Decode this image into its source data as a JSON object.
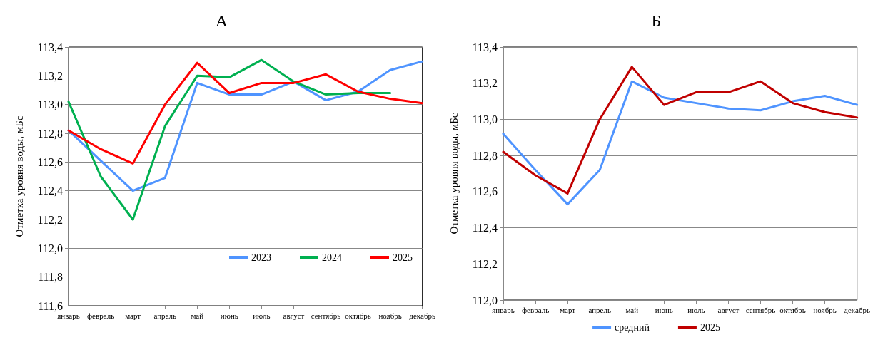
{
  "chart_data": [
    {
      "type": "line",
      "title": "А",
      "ylabel": "Отметка уровня воды, мБс",
      "categories": [
        "январь",
        "февраль",
        "март",
        "апрель",
        "май",
        "июнь",
        "июль",
        "август",
        "сентябрь",
        "октябрь",
        "ноябрь",
        "декабрь"
      ],
      "series": [
        {
          "name": "2023",
          "color": "#4f94ff",
          "values": [
            112.82,
            112.61,
            112.4,
            112.49,
            113.15,
            113.07,
            113.07,
            113.16,
            113.03,
            113.09,
            113.24,
            113.3
          ]
        },
        {
          "name": "2024",
          "color": "#00b050",
          "values": [
            113.02,
            112.5,
            112.2,
            112.85,
            113.2,
            113.19,
            113.31,
            113.16,
            113.07,
            113.08,
            113.08,
            null
          ]
        },
        {
          "name": "2025",
          "color": "#ff0000",
          "values": [
            112.82,
            112.69,
            112.59,
            113.0,
            113.29,
            113.08,
            113.15,
            113.15,
            113.21,
            113.09,
            113.04,
            113.01
          ]
        }
      ],
      "ylim": [
        111.6,
        113.4
      ],
      "yticks": [
        {
          "value": 111.6,
          "label": "111,6"
        },
        {
          "value": 111.8,
          "label": "111,8"
        },
        {
          "value": 112.0,
          "label": "112,0"
        },
        {
          "value": 112.2,
          "label": "112,2"
        },
        {
          "value": 112.4,
          "label": "112,4"
        },
        {
          "value": 112.6,
          "label": "112,6"
        },
        {
          "value": 112.8,
          "label": "112,8"
        },
        {
          "value": 113.0,
          "label": "113,0"
        },
        {
          "value": 113.2,
          "label": "113,2"
        },
        {
          "value": 113.4,
          "label": "113,4"
        }
      ],
      "grid": "y",
      "legend": "bottom right",
      "marker": "none",
      "line_style": "solid"
    },
    {
      "type": "line",
      "title": "Б",
      "ylabel": "Отметка уровня воды, мБс",
      "categories": [
        "январь",
        "февраль",
        "март",
        "апрель",
        "май",
        "июнь",
        "июль",
        "август",
        "сентябрь",
        "октябрь",
        "ноябрь",
        "декабрь"
      ],
      "series": [
        {
          "name": "средний",
          "color": "#4f94ff",
          "values": [
            112.92,
            112.72,
            112.53,
            112.72,
            113.21,
            113.12,
            113.09,
            113.06,
            113.05,
            113.1,
            113.13,
            113.08
          ]
        },
        {
          "name": "2025",
          "color": "#c00000",
          "values": [
            112.82,
            112.69,
            112.59,
            113.0,
            113.29,
            113.08,
            113.15,
            113.15,
            113.21,
            113.09,
            113.04,
            113.01
          ]
        }
      ],
      "ylim": [
        112.0,
        113.4
      ],
      "yticks": [
        {
          "value": 112.0,
          "label": "112,0"
        },
        {
          "value": 112.2,
          "label": "112,2"
        },
        {
          "value": 112.4,
          "label": "112,4"
        },
        {
          "value": 112.6,
          "label": "112,6"
        },
        {
          "value": 112.8,
          "label": "112,8"
        },
        {
          "value": 113.0,
          "label": "113,0"
        },
        {
          "value": 113.2,
          "label": "113,2"
        },
        {
          "value": 113.4,
          "label": "113,4"
        }
      ],
      "grid": "y",
      "legend": "bottom",
      "marker": "none",
      "line_style": "solid"
    }
  ]
}
